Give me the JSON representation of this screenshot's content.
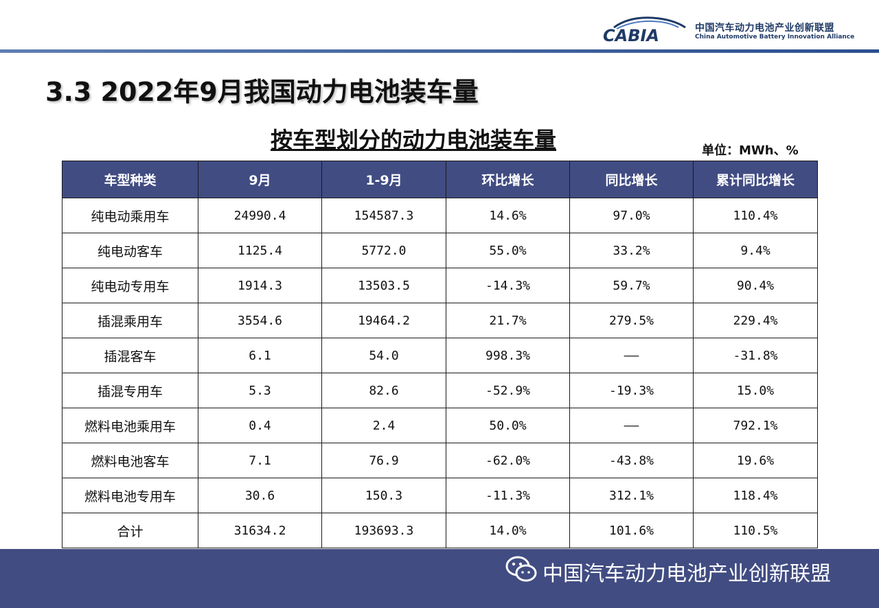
{
  "header": {
    "logo_text": "CABIA",
    "org_name_cn": "中国汽车动力电池产业创新联盟",
    "org_name_en": "China Automotive Battery Innovation Alliance"
  },
  "slide_title": "3.3 2022年9月我国动力电池装车量",
  "table_title": "按车型划分的动力电池装车量",
  "unit_label": "单位：MWh、%",
  "table": {
    "columns": [
      "车型种类",
      "9月",
      "1-9月",
      "环比增长",
      "同比增长",
      "累计同比增长"
    ],
    "rows": [
      [
        "纯电动乘用车",
        "24990.4",
        "154587.3",
        "14.6%",
        "97.0%",
        "110.4%"
      ],
      [
        "纯电动客车",
        "1125.4",
        "5772.0",
        "55.0%",
        "33.2%",
        "9.4%"
      ],
      [
        "纯电动专用车",
        "1914.3",
        "13503.5",
        "-14.3%",
        "59.7%",
        "90.4%"
      ],
      [
        "插混乘用车",
        "3554.6",
        "19464.2",
        "21.7%",
        "279.5%",
        "229.4%"
      ],
      [
        "插混客车",
        "6.1",
        "54.0",
        "998.3%",
        "——",
        "-31.8%"
      ],
      [
        "插混专用车",
        "5.3",
        "82.6",
        "-52.9%",
        "-19.3%",
        "15.0%"
      ],
      [
        "燃料电池乘用车",
        "0.4",
        "2.4",
        "50.0%",
        "——",
        "792.1%"
      ],
      [
        "燃料电池客车",
        "7.1",
        "76.9",
        "-62.0%",
        "-43.8%",
        "19.6%"
      ],
      [
        "燃料电池专用车",
        "30.6",
        "150.3",
        "-11.3%",
        "312.1%",
        "118.4%"
      ],
      [
        "合计",
        "31634.2",
        "193693.3",
        "14.0%",
        "101.6%",
        "110.5%"
      ]
    ]
  },
  "footer": {
    "icon": "wechat-icon",
    "text": "中国汽车动力电池产业创新联盟"
  },
  "colors": {
    "header_fill": "#414c82",
    "footer_band": "#414c82",
    "rule": "#2c4f8f",
    "logo": "#1f3a66"
  }
}
